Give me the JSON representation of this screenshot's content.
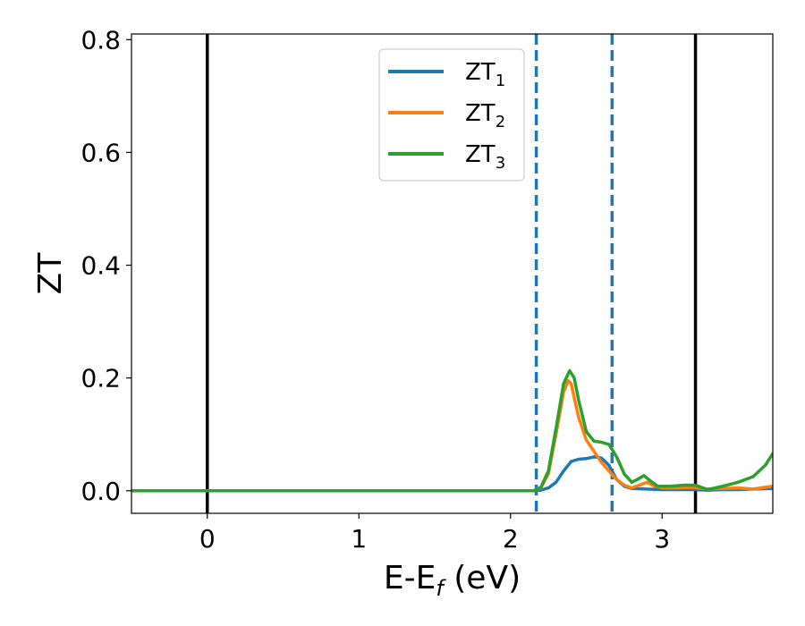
{
  "chart_data": {
    "type": "line",
    "xlabel": {
      "base": "E-E",
      "sub": "f",
      "tail": " (eV)"
    },
    "ylabel": "ZT",
    "xlim": [
      -0.5,
      3.73
    ],
    "ylim": [
      -0.04,
      0.81
    ],
    "xticks": [
      0,
      1,
      2,
      3
    ],
    "yticks": [
      0.0,
      0.2,
      0.4,
      0.6,
      0.8
    ],
    "ytick_labels": [
      "0.0",
      "0.2",
      "0.4",
      "0.6",
      "0.8"
    ],
    "legend_position": "top-center",
    "vlines_solid": [
      0.0,
      3.22
    ],
    "vlines_dashed": [
      2.17,
      2.67
    ],
    "series": [
      {
        "name": "ZT",
        "sub": "1",
        "color": "#1f77b4",
        "x": [
          -0.5,
          2.15,
          2.2,
          2.25,
          2.3,
          2.35,
          2.4,
          2.45,
          2.5,
          2.55,
          2.6,
          2.65,
          2.7,
          2.75,
          2.8,
          2.9,
          3.0,
          3.1,
          3.2,
          3.3,
          3.4,
          3.5,
          3.6,
          3.73
        ],
        "y": [
          0.0,
          0.0,
          0.001,
          0.005,
          0.015,
          0.035,
          0.052,
          0.056,
          0.057,
          0.06,
          0.058,
          0.045,
          0.02,
          0.008,
          0.004,
          0.003,
          0.002,
          0.002,
          0.002,
          0.001,
          0.002,
          0.002,
          0.003,
          0.004
        ]
      },
      {
        "name": "ZT",
        "sub": "2",
        "color": "#ff7f0e",
        "x": [
          -0.5,
          2.15,
          2.2,
          2.25,
          2.3,
          2.35,
          2.38,
          2.4,
          2.42,
          2.45,
          2.5,
          2.55,
          2.6,
          2.65,
          2.7,
          2.75,
          2.8,
          2.85,
          2.9,
          2.95,
          3.0,
          3.1,
          3.2,
          3.3,
          3.4,
          3.5,
          3.6,
          3.7,
          3.73
        ],
        "y": [
          0.0,
          0.0,
          0.005,
          0.03,
          0.1,
          0.175,
          0.195,
          0.19,
          0.165,
          0.13,
          0.09,
          0.07,
          0.05,
          0.035,
          0.02,
          0.01,
          0.005,
          0.01,
          0.015,
          0.008,
          0.005,
          0.005,
          0.006,
          0.003,
          0.004,
          0.005,
          0.003,
          0.007,
          0.008
        ]
      },
      {
        "name": "ZT",
        "sub": "3",
        "color": "#2ca02c",
        "x": [
          -0.5,
          2.15,
          2.2,
          2.25,
          2.3,
          2.35,
          2.39,
          2.42,
          2.45,
          2.5,
          2.55,
          2.6,
          2.65,
          2.7,
          2.75,
          2.8,
          2.85,
          2.88,
          2.92,
          2.97,
          3.05,
          3.15,
          3.22,
          3.3,
          3.4,
          3.5,
          3.6,
          3.68,
          3.73
        ],
        "y": [
          0.0,
          0.0,
          0.006,
          0.035,
          0.11,
          0.19,
          0.213,
          0.2,
          0.16,
          0.105,
          0.088,
          0.086,
          0.082,
          0.06,
          0.03,
          0.015,
          0.022,
          0.027,
          0.018,
          0.008,
          0.008,
          0.01,
          0.01,
          0.002,
          0.008,
          0.015,
          0.025,
          0.045,
          0.066
        ]
      }
    ]
  }
}
